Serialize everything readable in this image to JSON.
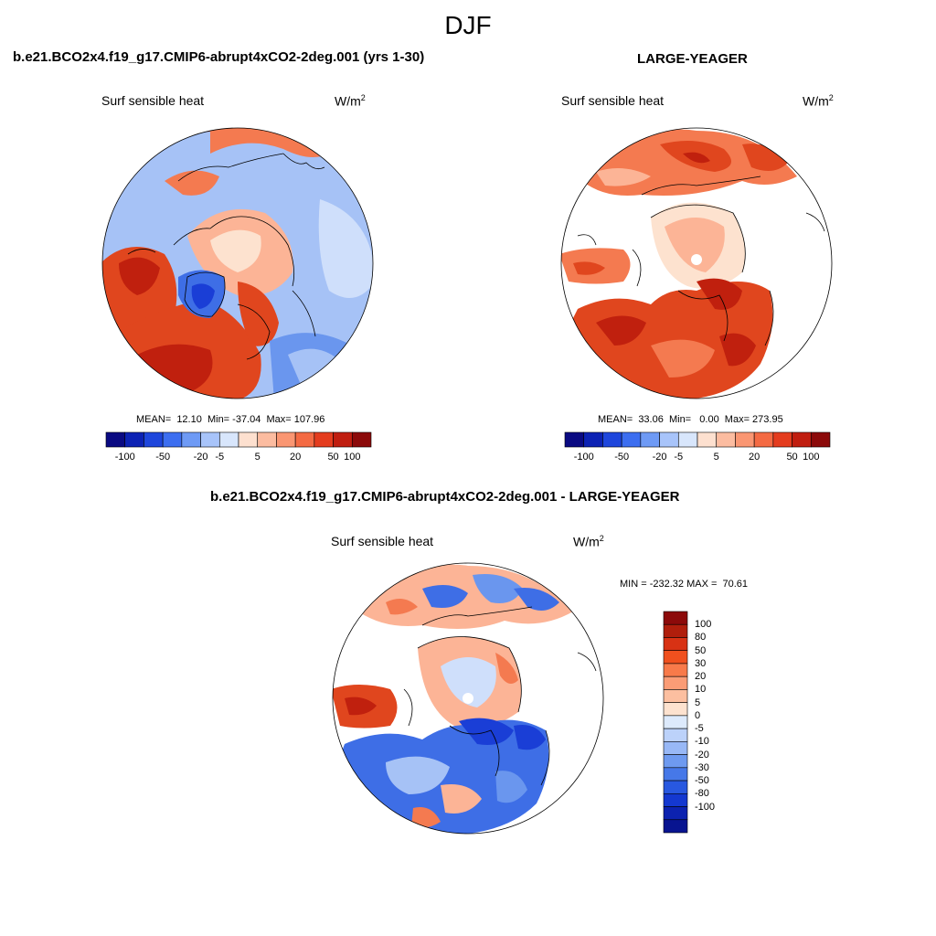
{
  "page": {
    "title": "DJF"
  },
  "panels": [
    {
      "title": "b.e21.BCO2x4.f19_g17.CMIP6-abrupt4xCO2-2deg.001 (yrs 1-30)",
      "variable": "Surf sensible heat",
      "units_base": "W/m",
      "units_exp": "2",
      "stats": "MEAN=  12.10  Min= -37.04  Max= 107.96"
    },
    {
      "title": "LARGE-YEAGER",
      "variable": "Surf sensible heat",
      "units_base": "W/m",
      "units_exp": "2",
      "stats": "MEAN=  33.06  Min=   0.00  Max= 273.95"
    },
    {
      "title": "b.e21.BCO2x4.f19_g17.CMIP6-abrupt4xCO2-2deg.001 - LARGE-YEAGER",
      "variable": "Surf sensible heat",
      "units_base": "W/m",
      "units_exp": "2",
      "stats": "MIN = -232.32 MAX =  70.61"
    }
  ],
  "colorbar_main": {
    "colors": [
      "#0a0a82",
      "#0c22b4",
      "#1e46dc",
      "#3c6ef0",
      "#6e9af5",
      "#a8c4fa",
      "#d8e6fc",
      "#fde0cf",
      "#fcbca0",
      "#fa9672",
      "#f46a43",
      "#e43c1e",
      "#c01e10",
      "#8c0a0a"
    ],
    "labels": [
      "-100",
      "-50",
      "-20",
      "-5",
      "5",
      "20",
      "50",
      "100"
    ]
  },
  "colorbar_diff": {
    "colors": [
      "#8c0a0a",
      "#b01e0c",
      "#d83214",
      "#f0501e",
      "#f87a4a",
      "#fa9c76",
      "#fcbfa0",
      "#fde2cf",
      "#ddeafc",
      "#bcd2fa",
      "#98b8f6",
      "#6e9af0",
      "#4678e8",
      "#2858e0",
      "#1438d0",
      "#0c22b0",
      "#081490"
    ],
    "labels": [
      "100",
      "80",
      "50",
      "30",
      "20",
      "10",
      "5",
      "0",
      "-5",
      "-10",
      "-20",
      "-30",
      "-50",
      "-80",
      "-100"
    ]
  },
  "map_colors": {
    "deep_red": "#c0200e",
    "red": "#e0461e",
    "orange": "#f47a50",
    "salmon": "#fcb496",
    "peach": "#fde2cf",
    "pale_blue": "#cfdffb",
    "light_blue": "#a6c2f6",
    "blue": "#6a96ee",
    "mid_blue": "#3e6ee6",
    "dark_blue": "#1a3ed6"
  }
}
